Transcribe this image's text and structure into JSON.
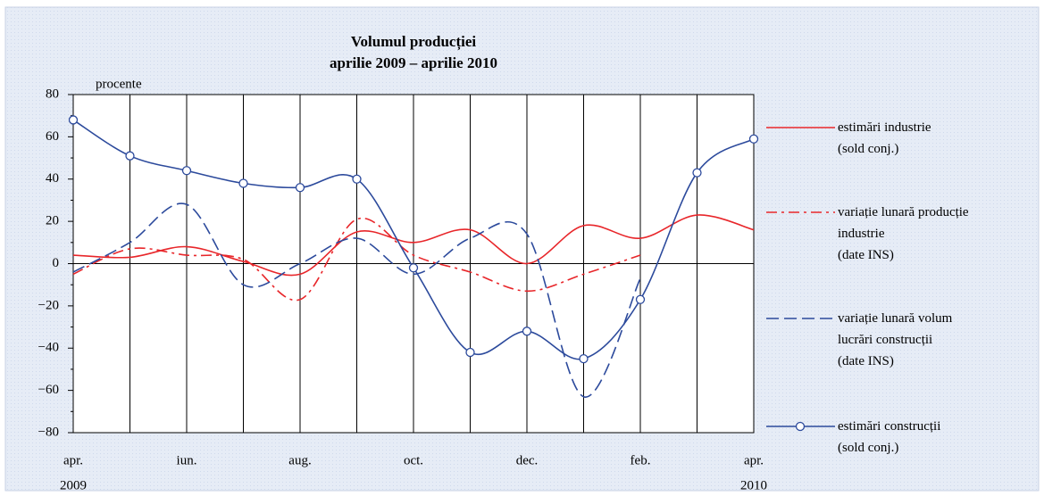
{
  "chart_data": {
    "type": "line",
    "title": "Volumul producției",
    "subtitle": "aprilie 2009 – aprilie 2010",
    "y_label": "procente",
    "categories": [
      "apr.",
      null,
      "iun.",
      null,
      "aug.",
      null,
      "oct.",
      null,
      "dec.",
      null,
      "feb.",
      null,
      "apr."
    ],
    "year_labels": [
      "2009",
      "2010"
    ],
    "ylim": [
      -80,
      80
    ],
    "yticks": [
      {
        "value": -80,
        "label": "−80"
      },
      {
        "value": -60,
        "label": "−60"
      },
      {
        "value": -40,
        "label": "−40"
      },
      {
        "value": -20,
        "label": "−20"
      },
      0,
      20,
      40,
      60,
      80
    ],
    "grid": true,
    "legend": "right",
    "series": [
      {
        "name": "estimări industrie\n(sold conj.)",
        "color": "#e8262a",
        "dash": "solid",
        "markers": false,
        "values": [
          4,
          3,
          8,
          1,
          -5,
          15,
          10,
          16,
          0,
          18,
          12,
          23,
          16
        ]
      },
      {
        "name": "variație lunară producție\nindustrie\n(date INS)",
        "color": "#e8262a",
        "dash": "dashdot",
        "markers": false,
        "values": [
          -5,
          7,
          4,
          2,
          -17,
          21,
          4,
          -4,
          -13,
          -5,
          4,
          null,
          null
        ]
      },
      {
        "name": "variație lunară volum\nlucrări construcții\n(date INS)",
        "color": "#2c4a9c",
        "dash": "dashed",
        "markers": false,
        "values": [
          -4,
          10,
          28,
          -10,
          0,
          12,
          -5,
          12,
          14,
          -63,
          -7,
          null,
          null
        ]
      },
      {
        "name": "estimări construcții\n(sold conj.)",
        "color": "#2c4a9c",
        "dash": "solid",
        "markers": true,
        "values": [
          68,
          51,
          44,
          38,
          36,
          40,
          -2,
          -42,
          -32,
          -45,
          -17,
          43,
          59
        ]
      }
    ]
  }
}
